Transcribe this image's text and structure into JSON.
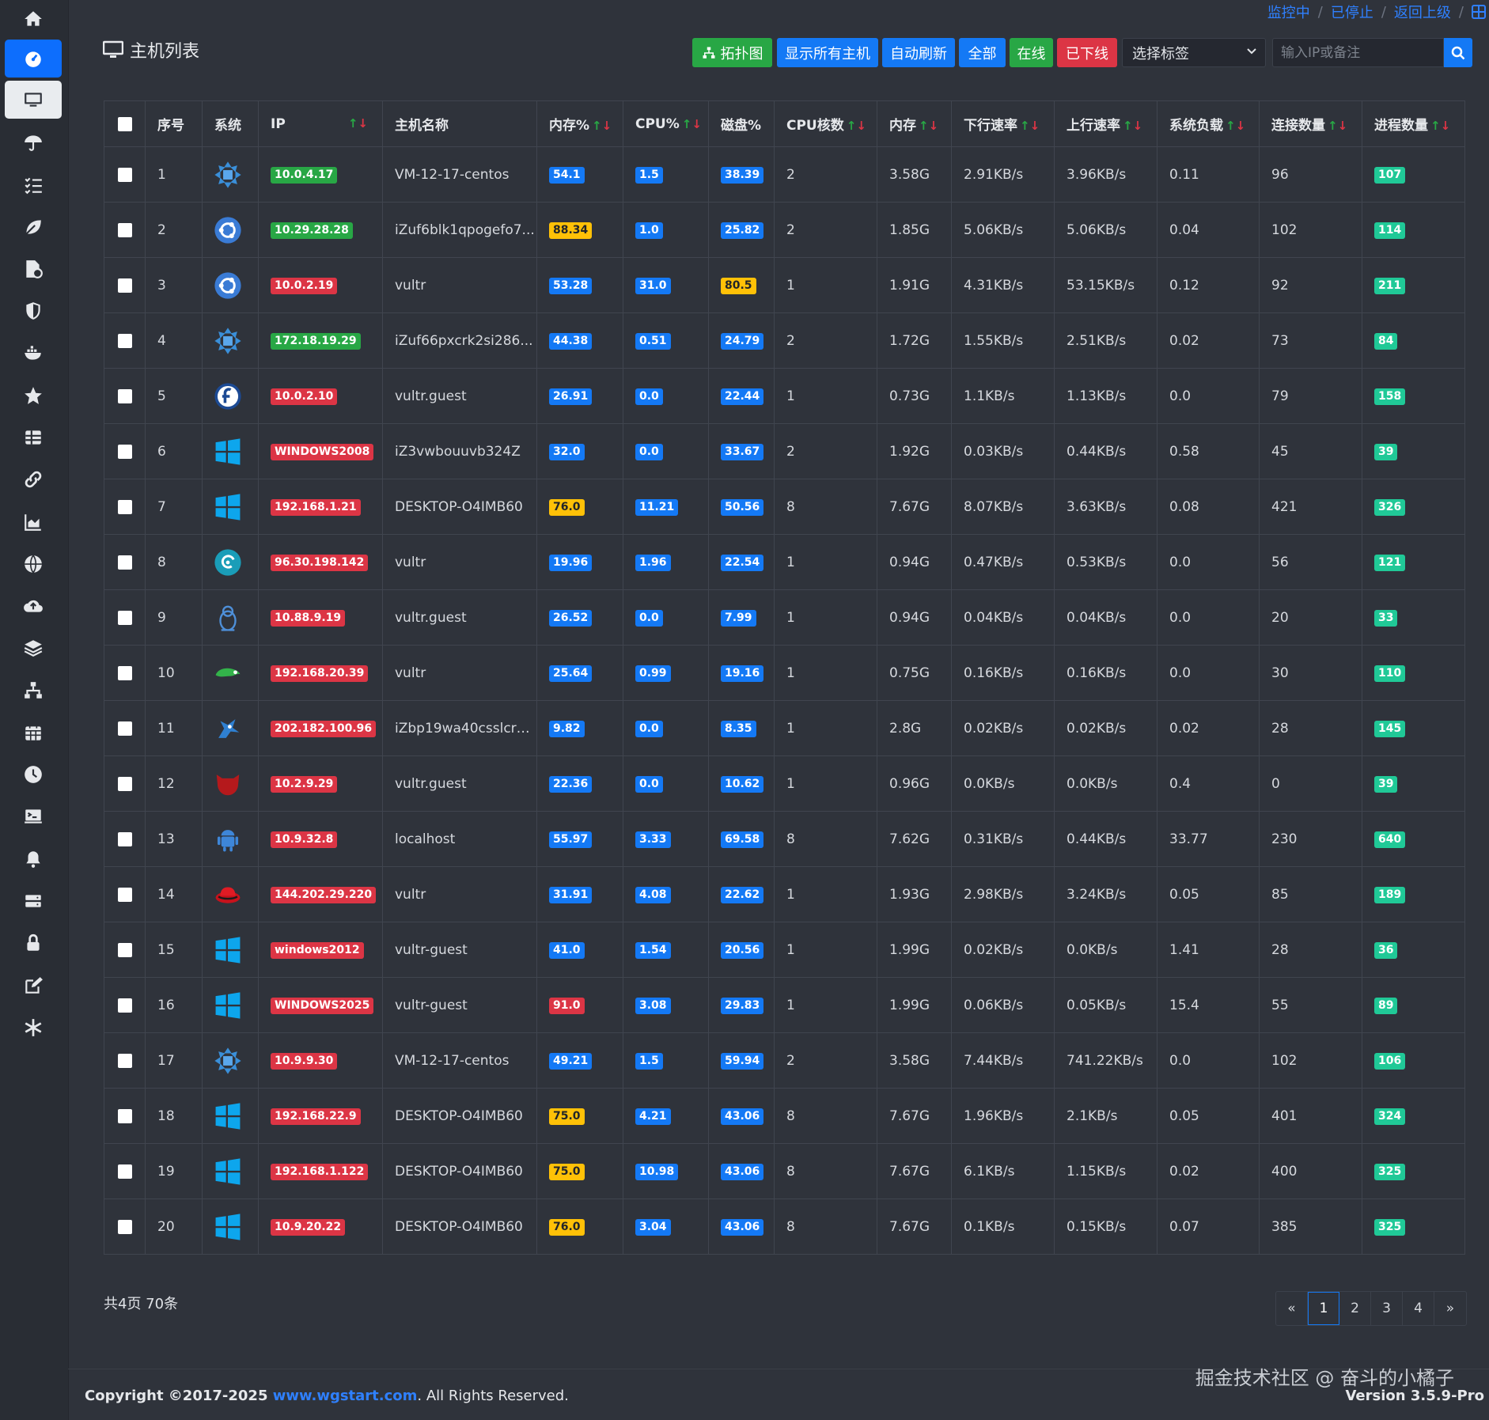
{
  "nav": {
    "monitoring": "监控中",
    "stopped": "已停止",
    "back": "返回上级",
    "separator": "/"
  },
  "page": {
    "title": "主机列表"
  },
  "toolbar": {
    "topology": "拓扑图",
    "show_all": "显示所有主机",
    "auto_refresh": "自动刷新",
    "all": "全部",
    "online": "在线",
    "offline": "已下线",
    "tag_select": "选择标签",
    "search_placeholder": "输入IP或备注"
  },
  "table": {
    "headers": {
      "index": "序号",
      "os": "系统",
      "ip": "IP",
      "hostname": "主机名称",
      "mem_pct": "内存%",
      "cpu_pct": "CPU%",
      "disk_pct": "磁盘%",
      "cpu_cores": "CPU核数",
      "memory": "内存",
      "down_rate": "下行速率",
      "up_rate": "上行速率",
      "load": "系统负载",
      "connections": "连接数量",
      "processes": "进程数量"
    },
    "rows": [
      {
        "index": "1",
        "os": "centos",
        "ip": "10.0.4.17",
        "ip_status": "green",
        "hostname": "VM-12-17-centos",
        "mem": "54.1",
        "mem_level": "blue",
        "cpu": "1.5",
        "cpu_level": "blue",
        "disk": "38.39",
        "disk_level": "blue",
        "cores": "2",
        "memory": "3.58G",
        "down": "2.91KB/s",
        "up": "3.96KB/s",
        "load": "0.11",
        "conn": "96",
        "proc": "107"
      },
      {
        "index": "2",
        "os": "ubuntu",
        "ip": "10.29.28.28",
        "ip_status": "green",
        "hostname": "iZuf6blk1qpogefo7...",
        "mem": "88.34",
        "mem_level": "yellow",
        "cpu": "1.0",
        "cpu_level": "blue",
        "disk": "25.82",
        "disk_level": "blue",
        "cores": "2",
        "memory": "1.85G",
        "down": "5.06KB/s",
        "up": "5.06KB/s",
        "load": "0.04",
        "conn": "102",
        "proc": "114"
      },
      {
        "index": "3",
        "os": "ubuntu",
        "ip": "10.0.2.19",
        "ip_status": "red",
        "hostname": "vultr",
        "mem": "53.28",
        "mem_level": "blue",
        "cpu": "31.0",
        "cpu_level": "blue",
        "disk": "80.5",
        "disk_level": "yellow",
        "cores": "1",
        "memory": "1.91G",
        "down": "4.31KB/s",
        "up": "53.15KB/s",
        "load": "0.12",
        "conn": "92",
        "proc": "211"
      },
      {
        "index": "4",
        "os": "centos",
        "ip": "172.18.19.29",
        "ip_status": "green",
        "hostname": "iZuf66pxcrk2si286...",
        "mem": "44.38",
        "mem_level": "blue",
        "cpu": "0.51",
        "cpu_level": "blue",
        "disk": "24.79",
        "disk_level": "blue",
        "cores": "2",
        "memory": "1.72G",
        "down": "1.55KB/s",
        "up": "2.51KB/s",
        "load": "0.02",
        "conn": "73",
        "proc": "84"
      },
      {
        "index": "5",
        "os": "fedora",
        "ip": "10.0.2.10",
        "ip_status": "red",
        "hostname": "vultr.guest",
        "mem": "26.91",
        "mem_level": "blue",
        "cpu": "0.0",
        "cpu_level": "blue",
        "disk": "22.44",
        "disk_level": "blue",
        "cores": "1",
        "memory": "0.73G",
        "down": "1.1KB/s",
        "up": "1.13KB/s",
        "load": "0.0",
        "conn": "79",
        "proc": "158"
      },
      {
        "index": "6",
        "os": "windows",
        "ip": "WINDOWS2008",
        "ip_status": "red",
        "hostname": "iZ3vwbouuvb324Z",
        "mem": "32.0",
        "mem_level": "blue",
        "cpu": "0.0",
        "cpu_level": "blue",
        "disk": "33.67",
        "disk_level": "blue",
        "cores": "2",
        "memory": "1.92G",
        "down": "0.03KB/s",
        "up": "0.44KB/s",
        "load": "0.58",
        "conn": "45",
        "proc": "39"
      },
      {
        "index": "7",
        "os": "windows",
        "ip": "192.168.1.21",
        "ip_status": "red",
        "hostname": "DESKTOP-O4IMB60",
        "mem": "76.0",
        "mem_level": "yellow",
        "cpu": "11.21",
        "cpu_level": "blue",
        "disk": "50.56",
        "disk_level": "blue",
        "cores": "8",
        "memory": "7.67G",
        "down": "8.07KB/s",
        "up": "3.63KB/s",
        "load": "0.08",
        "conn": "421",
        "proc": "326"
      },
      {
        "index": "8",
        "os": "debian",
        "ip": "96.30.198.142",
        "ip_status": "red",
        "hostname": "vultr",
        "mem": "19.96",
        "mem_level": "blue",
        "cpu": "1.96",
        "cpu_level": "blue",
        "disk": "22.54",
        "disk_level": "blue",
        "cores": "1",
        "memory": "0.94G",
        "down": "0.47KB/s",
        "up": "0.53KB/s",
        "load": "0.0",
        "conn": "56",
        "proc": "121"
      },
      {
        "index": "9",
        "os": "linux",
        "ip": "10.88.9.19",
        "ip_status": "red",
        "hostname": "vultr.guest",
        "mem": "26.52",
        "mem_level": "blue",
        "cpu": "0.0",
        "cpu_level": "blue",
        "disk": "7.99",
        "disk_level": "blue",
        "cores": "1",
        "memory": "0.94G",
        "down": "0.04KB/s",
        "up": "0.04KB/s",
        "load": "0.0",
        "conn": "20",
        "proc": "33"
      },
      {
        "index": "10",
        "os": "opensuse",
        "ip": "192.168.20.39",
        "ip_status": "red",
        "hostname": "vultr",
        "mem": "25.64",
        "mem_level": "blue",
        "cpu": "0.99",
        "cpu_level": "blue",
        "disk": "19.16",
        "disk_level": "blue",
        "cores": "1",
        "memory": "0.75G",
        "down": "0.16KB/s",
        "up": "0.16KB/s",
        "load": "0.0",
        "conn": "30",
        "proc": "110"
      },
      {
        "index": "11",
        "os": "freebsd",
        "ip": "202.182.100.96",
        "ip_status": "red",
        "hostname": "iZbp19wa40csslcru...",
        "mem": "9.82",
        "mem_level": "blue",
        "cpu": "0.0",
        "cpu_level": "blue",
        "disk": "8.35",
        "disk_level": "blue",
        "cores": "1",
        "memory": "2.8G",
        "down": "0.02KB/s",
        "up": "0.02KB/s",
        "load": "0.02",
        "conn": "28",
        "proc": "145"
      },
      {
        "index": "12",
        "os": "bsd",
        "ip": "10.2.9.29",
        "ip_status": "red",
        "hostname": "vultr.guest",
        "mem": "22.36",
        "mem_level": "blue",
        "cpu": "0.0",
        "cpu_level": "blue",
        "disk": "10.62",
        "disk_level": "blue",
        "cores": "1",
        "memory": "0.96G",
        "down": "0.0KB/s",
        "up": "0.0KB/s",
        "load": "0.4",
        "conn": "0",
        "proc": "39"
      },
      {
        "index": "13",
        "os": "android",
        "ip": "10.9.32.8",
        "ip_status": "red",
        "hostname": "localhost",
        "mem": "55.97",
        "mem_level": "blue",
        "cpu": "3.33",
        "cpu_level": "blue",
        "disk": "69.58",
        "disk_level": "blue",
        "cores": "8",
        "memory": "7.62G",
        "down": "0.31KB/s",
        "up": "0.44KB/s",
        "load": "33.77",
        "conn": "230",
        "proc": "640"
      },
      {
        "index": "14",
        "os": "redhat",
        "ip": "144.202.29.220",
        "ip_status": "red",
        "hostname": "vultr",
        "mem": "31.91",
        "mem_level": "blue",
        "cpu": "4.08",
        "cpu_level": "blue",
        "disk": "22.62",
        "disk_level": "blue",
        "cores": "1",
        "memory": "1.93G",
        "down": "2.98KB/s",
        "up": "3.24KB/s",
        "load": "0.05",
        "conn": "85",
        "proc": "189"
      },
      {
        "index": "15",
        "os": "windows",
        "ip": "windows2012",
        "ip_status": "red",
        "hostname": "vultr-guest",
        "mem": "41.0",
        "mem_level": "blue",
        "cpu": "1.54",
        "cpu_level": "blue",
        "disk": "20.56",
        "disk_level": "blue",
        "cores": "1",
        "memory": "1.99G",
        "down": "0.02KB/s",
        "up": "0.0KB/s",
        "load": "1.41",
        "conn": "28",
        "proc": "36"
      },
      {
        "index": "16",
        "os": "windows",
        "ip": "WINDOWS2025",
        "ip_status": "red",
        "hostname": "vultr-guest",
        "mem": "91.0",
        "mem_level": "red",
        "cpu": "3.08",
        "cpu_level": "blue",
        "disk": "29.83",
        "disk_level": "blue",
        "cores": "1",
        "memory": "1.99G",
        "down": "0.06KB/s",
        "up": "0.05KB/s",
        "load": "15.4",
        "conn": "55",
        "proc": "89"
      },
      {
        "index": "17",
        "os": "centos",
        "ip": "10.9.9.30",
        "ip_status": "red",
        "hostname": "VM-12-17-centos",
        "mem": "49.21",
        "mem_level": "blue",
        "cpu": "1.5",
        "cpu_level": "blue",
        "disk": "59.94",
        "disk_level": "blue",
        "cores": "2",
        "memory": "3.58G",
        "down": "7.44KB/s",
        "up": "741.22KB/s",
        "load": "0.0",
        "conn": "102",
        "proc": "106"
      },
      {
        "index": "18",
        "os": "windows",
        "ip": "192.168.22.9",
        "ip_status": "red",
        "hostname": "DESKTOP-O4IMB60",
        "mem": "75.0",
        "mem_level": "yellow",
        "cpu": "4.21",
        "cpu_level": "blue",
        "disk": "43.06",
        "disk_level": "blue",
        "cores": "8",
        "memory": "7.67G",
        "down": "1.96KB/s",
        "up": "2.1KB/s",
        "load": "0.05",
        "conn": "401",
        "proc": "324"
      },
      {
        "index": "19",
        "os": "windows",
        "ip": "192.168.1.122",
        "ip_status": "red",
        "hostname": "DESKTOP-O4IMB60",
        "mem": "75.0",
        "mem_level": "yellow",
        "cpu": "10.98",
        "cpu_level": "blue",
        "disk": "43.06",
        "disk_level": "blue",
        "cores": "8",
        "memory": "7.67G",
        "down": "6.1KB/s",
        "up": "1.15KB/s",
        "load": "0.02",
        "conn": "400",
        "proc": "325"
      },
      {
        "index": "20",
        "os": "windows",
        "ip": "10.9.20.22",
        "ip_status": "red",
        "hostname": "DESKTOP-O4IMB60",
        "mem": "76.0",
        "mem_level": "yellow",
        "cpu": "3.04",
        "cpu_level": "blue",
        "disk": "43.06",
        "disk_level": "blue",
        "cores": "8",
        "memory": "7.67G",
        "down": "0.1KB/s",
        "up": "0.15KB/s",
        "load": "0.07",
        "conn": "385",
        "proc": "325"
      }
    ]
  },
  "pagination": {
    "summary": "共4页 70条",
    "prev": "«",
    "next": "»",
    "pages": [
      "1",
      "2",
      "3",
      "4"
    ],
    "current": "1"
  },
  "footer": {
    "copyright_prefix": "Copyright ©2017-2025 ",
    "link": "www.wgstart.com",
    "copyright_suffix": ". All Rights Reserved.",
    "watermark": "掘金技术社区 @ 奋斗的小橘子",
    "version": "Version 3.5.9-Pro"
  },
  "colors": {
    "accent": "#1479f5",
    "green": "#28a745",
    "red": "#dc3545",
    "yellow": "#ffc107",
    "teal": "#20c997",
    "background": "#2f333b"
  }
}
